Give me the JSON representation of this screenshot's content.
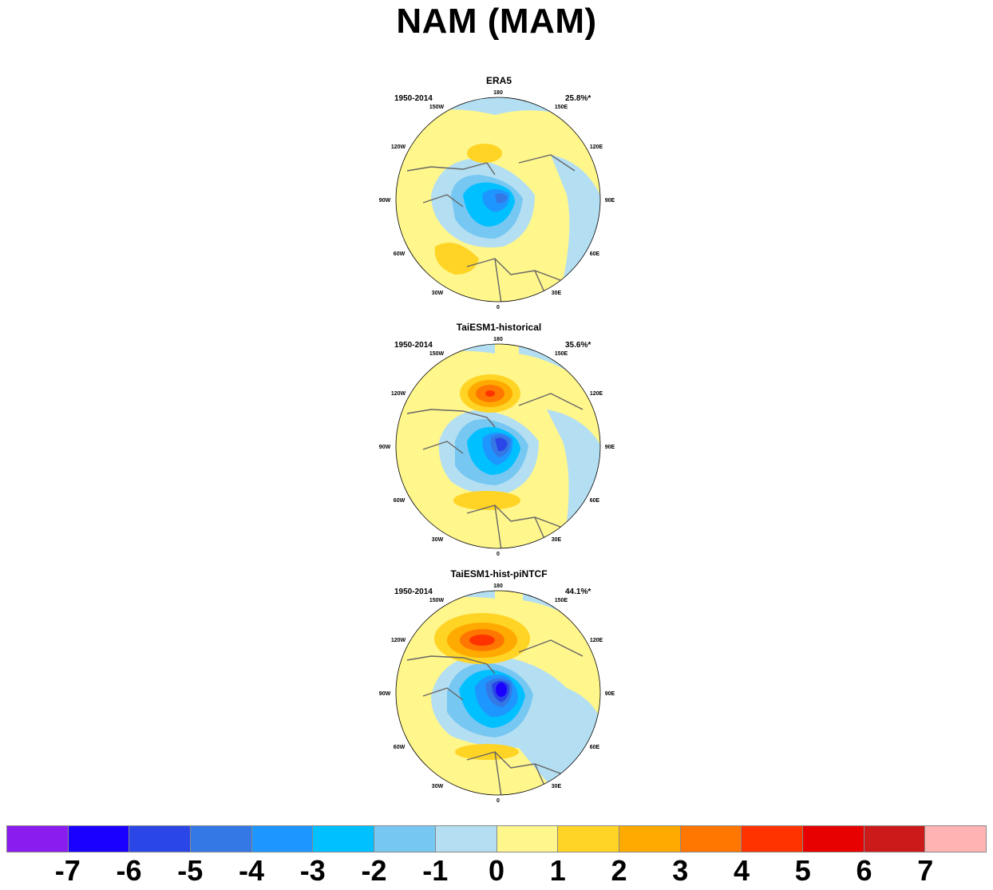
{
  "title": "NAM (MAM)",
  "panels": [
    {
      "title": "ERA5",
      "period": "1950-2014",
      "variance": "25.8%*"
    },
    {
      "title": "TaiESM1-historical",
      "period": "1950-2014",
      "variance": "35.6%*"
    },
    {
      "title": "TaiESM1-hist-piNTCF",
      "period": "1950-2014",
      "variance": "44.1%*"
    }
  ],
  "longitude_labels": [
    "180",
    "150E",
    "120E",
    "90E",
    "60E",
    "30E",
    "0",
    "30W",
    "60W",
    "90W",
    "120W",
    "150W"
  ],
  "colorbar": {
    "colors": [
      "#8a1cf0",
      "#1a00ff",
      "#2b46e6",
      "#3478e6",
      "#1e96ff",
      "#00c0ff",
      "#76c7f2",
      "#b4dff2",
      "#fff68c",
      "#ffd424",
      "#ffaa00",
      "#ff7700",
      "#ff3300",
      "#e60000",
      "#cc1a1a",
      "#ffb3b3"
    ],
    "labels": [
      "-7",
      "-6",
      "-5",
      "-4",
      "-3",
      "-2",
      "-1",
      "0",
      "1",
      "2",
      "3",
      "4",
      "5",
      "6",
      "7"
    ]
  }
}
